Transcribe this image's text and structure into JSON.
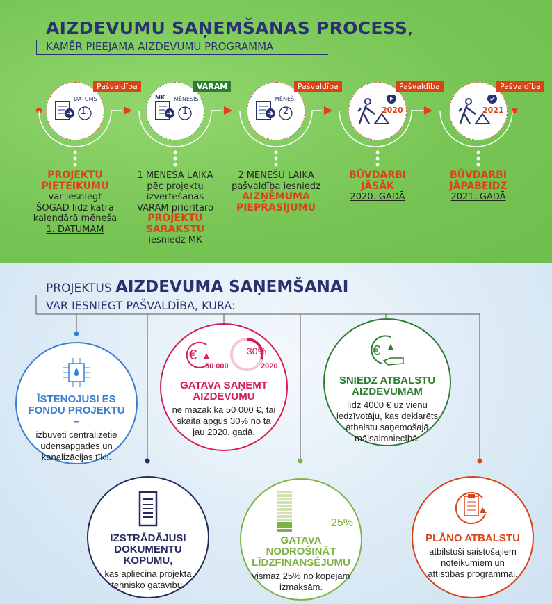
{
  "title": {
    "main": "AIZDEVUMU SAŅEMŠANAS PROCESS",
    "comma": ",",
    "sub": "KAMĒR PIEEJAMA AIZDEVUMU PROGRAMMA"
  },
  "steps": [
    {
      "badge": "Pašvaldība",
      "icon_label": "DATUMS",
      "icon_num": "1.",
      "icon": "document-arrow-icon",
      "lines": [
        {
          "t": "PROJEKTU",
          "s": "o"
        },
        {
          "t": "PIETEIKUMU",
          "s": "o"
        },
        {
          "t": "var iesniegt"
        },
        {
          "t": "ŠOGAD līdz katra"
        },
        {
          "t": "kalendārā mēneša"
        },
        {
          "t": "1. DATUMAM",
          "s": "u"
        }
      ]
    },
    {
      "badge": "VARAM",
      "icon_top": "MK",
      "icon_label": "MĒNESIS",
      "icon_num": "1",
      "icon": "document-arrow-icon",
      "lines": [
        {
          "t": "1 MĒNEŠA LAIKĀ",
          "s": "u"
        },
        {
          "t": "pēc projektu"
        },
        {
          "t": "izvērtēšanas"
        },
        {
          "t": "VARAM prioritāro"
        },
        {
          "t": "PROJEKTU",
          "s": "o"
        },
        {
          "t": "SARAKSTU",
          "s": "o"
        },
        {
          "t": "iesniedz MK"
        }
      ]
    },
    {
      "badge": "Pašvaldība",
      "icon_label": "MĒNEŠI",
      "icon_num": "2",
      "icon": "document-arrow-icon",
      "lines": [
        {
          "t": "2 MĒNEŠU LAIKĀ",
          "s": "u"
        },
        {
          "t": "pašvaldība iesniedz"
        },
        {
          "t": "AIZŅĒMUMA",
          "s": "o"
        },
        {
          "t": "PIEPRASĪJUMU",
          "s": "o"
        }
      ]
    },
    {
      "badge": "Pašvaldība",
      "icon_year": "2020",
      "icon": "construction-worker-play-icon",
      "lines": [
        {
          "t": "BŪVDARBI",
          "s": "o"
        },
        {
          "t": "JĀSĀK",
          "s": "o"
        },
        {
          "t": "2020. GADĀ",
          "s": "u"
        }
      ]
    },
    {
      "badge": "Pašvaldība",
      "icon_year": "2021",
      "icon": "construction-worker-check-icon",
      "lines": [
        {
          "t": "BŪVDARBI",
          "s": "o"
        },
        {
          "t": "JĀPABEIDZ",
          "s": "o"
        },
        {
          "t": "2021. GADĀ",
          "s": "u"
        }
      ]
    }
  ],
  "section2": {
    "pre": "PROJEKTUS ",
    "bold": "AIZDEVUMA SAŅEMŠANAI",
    "sub": "VAR IESNIEGT PAŠVALDĪBA, KURA:"
  },
  "criteria": [
    {
      "color": "#3a7fd0",
      "icon": "water-chip-icon",
      "head": "ĪSTENOJUSI ES FONDU PROJEKTU –",
      "desc": "izbūvēti centralizētie ūdensapgādes un kanalizācijas tīkli."
    },
    {
      "color": "#d01f5a",
      "icon": "euro-cycle-icon",
      "icon_a": "50 000",
      "icon_b": "30%",
      "icon_c": "2020",
      "head": "GATAVA SAŅEMT AIZDEVUMU",
      "desc": "ne mazāk kā 50 000 €, tai skaitā apgūs 30% no tā jau 2020. gadā."
    },
    {
      "color": "#2e7d32",
      "icon": "euro-hand-icon",
      "head": "SNIEDZ ATBALSTU AIZDEVUMAM",
      "desc": "līdz 4000 € uz vienu iedzīvotāju, kas deklarēts atbalstu saņemošajā mājsaimniecībā."
    },
    {
      "color": "#262b5e",
      "icon": "document-list-icon",
      "head": "IZSTRĀDĀJUSI DOKUMENTU KOPUMU,",
      "desc": "kas apliecina projekta tehnisko gatavību."
    },
    {
      "color": "#7cb342",
      "icon": "bar-level-icon",
      "icon_a": "25%",
      "level": 25,
      "head": "GATAVA NODROŠINĀT LĪDZFINANSĒJUMU",
      "desc": "vismaz 25% no kopējām izmaksām."
    },
    {
      "color": "#d94315",
      "icon": "clipboard-cycle-icon",
      "head": "PLĀNO ATBALSTU",
      "desc": "atbilstoši saistošajiem noteikumiem un attīstības programmai."
    }
  ]
}
